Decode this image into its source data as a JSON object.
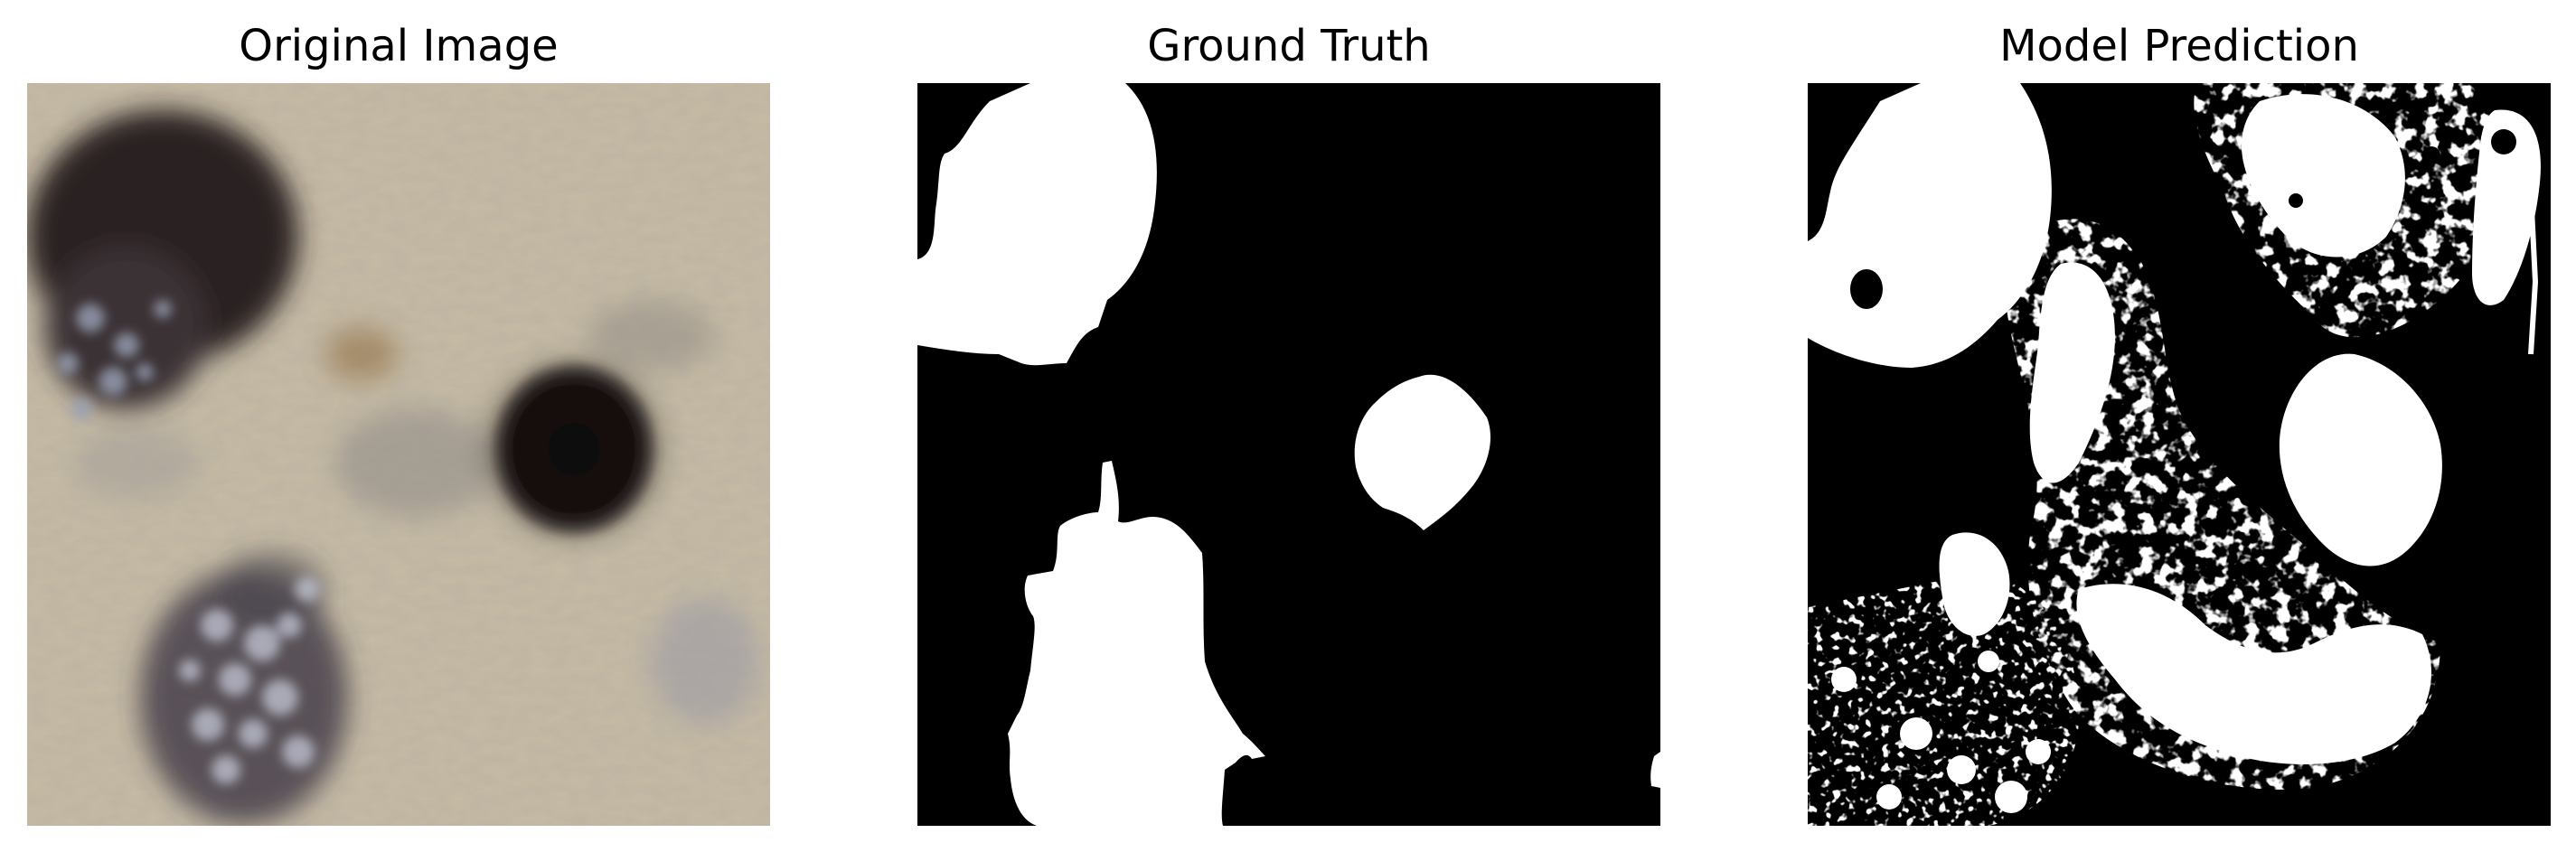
{
  "figure": {
    "panels": [
      {
        "title": "Original Image"
      },
      {
        "title": "Ground Truth"
      },
      {
        "title": "Model Prediction"
      }
    ]
  },
  "colors": {
    "background": "#ffffff",
    "mask_foreground": "#ffffff",
    "mask_background": "#000000",
    "texture_base": "#c7bba3",
    "lesion_dark": "#120c0c"
  }
}
